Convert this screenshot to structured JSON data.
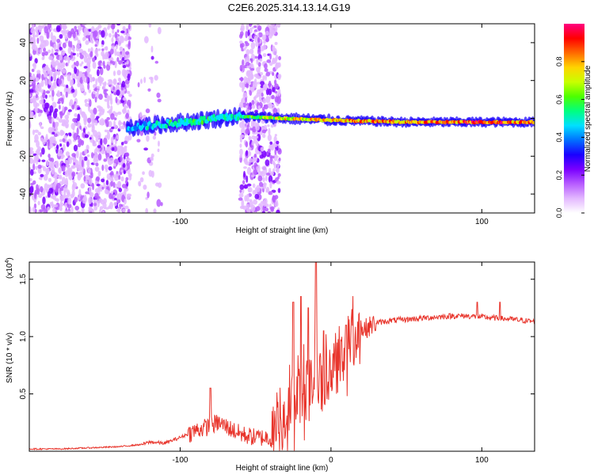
{
  "title": "C2E6.2025.314.13.14.G19",
  "colors": {
    "snr_line": "#e8352c",
    "axis": "#000000",
    "colorbar": [
      "#ffffff",
      "#e3b8ff",
      "#b75cff",
      "#7a00ff",
      "#1a00ff",
      "#0070ff",
      "#00e0ff",
      "#00ff80",
      "#4dff00",
      "#c8ff00",
      "#ffd400",
      "#ff6a00",
      "#ff0000",
      "#ff0080"
    ]
  },
  "chart_data": [
    {
      "type": "heatmap",
      "xlabel": "Height of straight line (km)",
      "ylabel": "Frequency (Hz)",
      "xlim": [
        -200,
        135
      ],
      "ylim": [
        -50,
        50
      ],
      "xticks": [
        -100,
        0,
        100
      ],
      "xtick_labels": [
        "-100",
        "",
        "100"
      ],
      "yticks": [
        -40,
        -20,
        0,
        20,
        40
      ],
      "ytick_labels": [
        "-40",
        "-20",
        "0",
        "20",
        "40"
      ],
      "colorbar": {
        "label": "Normalized spectral amplitude",
        "range": [
          0,
          1
        ],
        "ticks": [
          0.0,
          0.2,
          0.4,
          0.6,
          0.8
        ],
        "tick_labels": [
          "0.0",
          "0.2",
          "0.4",
          "0.6",
          "0.8"
        ]
      },
      "noise_bands": [
        [
          -200,
          -133
        ],
        [
          -128,
          -121
        ],
        [
          -122,
          -112
        ],
        [
          -60,
          -34
        ]
      ],
      "main_track": [
        {
          "x": -135,
          "y": -5,
          "amp": 0.45
        },
        {
          "x": -110,
          "y": -3,
          "amp": 0.55
        },
        {
          "x": -85,
          "y": -1,
          "amp": 0.6
        },
        {
          "x": -63,
          "y": 1,
          "amp": 0.55
        },
        {
          "x": -30,
          "y": 0,
          "amp": 0.8
        },
        {
          "x": 0,
          "y": -1,
          "amp": 0.85
        },
        {
          "x": 50,
          "y": -2,
          "amp": 0.9
        },
        {
          "x": 100,
          "y": -2,
          "amp": 0.95
        },
        {
          "x": 135,
          "y": -2,
          "amp": 0.95
        }
      ]
    },
    {
      "type": "line",
      "xlabel": "Height of straight line (km)",
      "ylabel": "SNR (10 * v/v)",
      "yscale_label": "(x10",
      "yscale_exp": "4",
      "yscale_suffix": ")",
      "xlim": [
        -200,
        135
      ],
      "ylim": [
        0,
        1.65
      ],
      "xticks": [
        -100,
        0,
        100
      ],
      "xtick_labels": [
        "-100",
        "0",
        "100"
      ],
      "yticks": [
        0.5,
        1.0,
        1.5
      ],
      "ytick_labels": [
        "0.5",
        "1.0",
        "1.5"
      ],
      "series": [
        {
          "x": [
            -200,
            -180,
            -160,
            -140,
            -125,
            -120,
            -110,
            -100,
            -90,
            -80,
            -75,
            -70,
            -60,
            -50,
            -40,
            -35,
            -30,
            -25,
            -20,
            -15,
            -10,
            -5,
            0,
            5,
            10,
            15,
            20,
            30,
            40,
            50,
            60,
            70,
            80,
            90,
            100,
            110,
            120,
            135
          ],
          "y": [
            0.02,
            0.02,
            0.03,
            0.04,
            0.06,
            0.08,
            0.07,
            0.12,
            0.18,
            0.22,
            0.25,
            0.22,
            0.15,
            0.12,
            0.12,
            0.2,
            0.3,
            0.4,
            0.5,
            0.55,
            0.62,
            0.6,
            0.7,
            0.78,
            0.85,
            0.95,
            1.05,
            1.12,
            1.14,
            1.15,
            1.16,
            1.17,
            1.18,
            1.18,
            1.17,
            1.16,
            1.15,
            1.13
          ]
        }
      ],
      "spikes": [
        {
          "x": -80,
          "y": 0.55
        },
        {
          "x": -25,
          "y": 1.3
        },
        {
          "x": -20,
          "y": 1.35
        },
        {
          "x": -15,
          "y": 1.25
        },
        {
          "x": -10,
          "y": 1.65
        },
        {
          "x": -5,
          "y": 1.05
        },
        {
          "x": 10,
          "y": 1.1
        },
        {
          "x": 97,
          "y": 1.3
        },
        {
          "x": 112,
          "y": 1.3
        }
      ]
    }
  ]
}
